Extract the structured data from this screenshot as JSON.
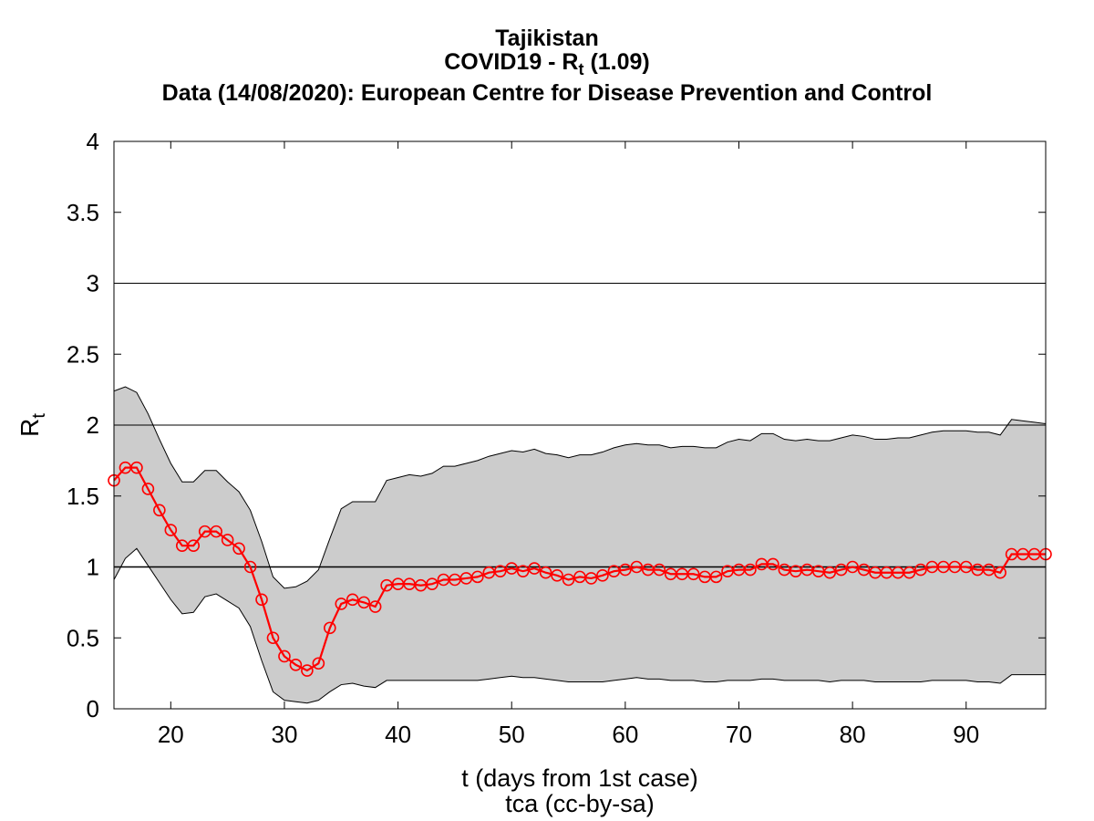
{
  "chart_data": {
    "type": "line",
    "title": "Tajikistan",
    "subtitle": {
      "prefix": "COVID19 - R",
      "subscript": "t",
      "suffix": " (1.09)"
    },
    "source": "Data (14/08/2020): European Centre for Disease Prevention and Control",
    "xlabel": "t (days from 1st case)",
    "credit": "tca (cc-by-sa)",
    "ylabel": {
      "main": "R",
      "subscript": "t"
    },
    "xlim": [
      15,
      97
    ],
    "ylim": [
      0,
      4
    ],
    "x_ticks": [
      20,
      30,
      40,
      50,
      60,
      70,
      80,
      90
    ],
    "x_tick_labels": [
      "20",
      "30",
      "40",
      "50",
      "60",
      "70",
      "80",
      "90"
    ],
    "y_ticks": [
      0,
      0.5,
      1,
      1.5,
      2,
      2.5,
      3,
      3.5,
      4
    ],
    "y_tick_labels": [
      "0",
      "0.5",
      "1",
      "1.5",
      "2",
      "2.5",
      "3",
      "3.5",
      "4"
    ],
    "reference_lines": [
      1,
      2,
      3
    ],
    "colors": {
      "series": "#ff0000",
      "band": "#cccccc",
      "axis": "#000000"
    },
    "series": [
      {
        "x": [
          15,
          16,
          17,
          18,
          19,
          20,
          21,
          22,
          23,
          24,
          25,
          26,
          27,
          28,
          29,
          30,
          31,
          32,
          33,
          34,
          35,
          36,
          37,
          38,
          39,
          40,
          41,
          42,
          43,
          44,
          45,
          46,
          47,
          48,
          49,
          50,
          51,
          52,
          53,
          54,
          55,
          56,
          57,
          58,
          59,
          60,
          61,
          62,
          63,
          64,
          65,
          66,
          67,
          68,
          69,
          70,
          71,
          72,
          73,
          74,
          75,
          76,
          77,
          78,
          79,
          80,
          81,
          82,
          83,
          84,
          85,
          86,
          87,
          88,
          89,
          90,
          91,
          92,
          93,
          94,
          95,
          96,
          97
        ],
        "y": [
          1.61,
          1.7,
          1.7,
          1.55,
          1.4,
          1.26,
          1.15,
          1.15,
          1.25,
          1.25,
          1.19,
          1.13,
          1.0,
          0.77,
          0.5,
          0.37,
          0.31,
          0.27,
          0.32,
          0.57,
          0.74,
          0.77,
          0.75,
          0.72,
          0.87,
          0.88,
          0.88,
          0.87,
          0.88,
          0.91,
          0.91,
          0.92,
          0.93,
          0.96,
          0.97,
          0.99,
          0.97,
          0.99,
          0.96,
          0.94,
          0.91,
          0.93,
          0.92,
          0.94,
          0.97,
          0.98,
          1.0,
          0.98,
          0.98,
          0.95,
          0.95,
          0.95,
          0.93,
          0.93,
          0.97,
          0.98,
          0.98,
          1.02,
          1.02,
          0.98,
          0.97,
          0.98,
          0.97,
          0.96,
          0.98,
          1.0,
          0.98,
          0.96,
          0.96,
          0.96,
          0.96,
          0.98,
          1.0,
          1.0,
          1.0,
          1.0,
          0.98,
          0.98,
          0.96,
          1.09,
          1.09,
          1.09,
          1.09
        ]
      }
    ],
    "confidence_band": {
      "upper": [
        2.24,
        2.27,
        2.23,
        2.08,
        1.9,
        1.73,
        1.6,
        1.6,
        1.68,
        1.68,
        1.6,
        1.53,
        1.4,
        1.18,
        0.93,
        0.85,
        0.86,
        0.9,
        0.98,
        1.2,
        1.41,
        1.46,
        1.46,
        1.46,
        1.61,
        1.63,
        1.65,
        1.64,
        1.66,
        1.71,
        1.71,
        1.73,
        1.75,
        1.78,
        1.8,
        1.82,
        1.81,
        1.83,
        1.8,
        1.79,
        1.77,
        1.79,
        1.79,
        1.81,
        1.84,
        1.86,
        1.87,
        1.86,
        1.86,
        1.84,
        1.85,
        1.85,
        1.84,
        1.84,
        1.88,
        1.9,
        1.89,
        1.94,
        1.94,
        1.9,
        1.89,
        1.9,
        1.89,
        1.89,
        1.91,
        1.93,
        1.92,
        1.9,
        1.9,
        1.91,
        1.91,
        1.93,
        1.95,
        1.96,
        1.96,
        1.96,
        1.95,
        1.95,
        1.93,
        2.04,
        2.03,
        2.02,
        2.01
      ],
      "lower": [
        0.91,
        1.06,
        1.13,
        1.01,
        0.89,
        0.77,
        0.67,
        0.68,
        0.79,
        0.81,
        0.76,
        0.71,
        0.58,
        0.34,
        0.12,
        0.06,
        0.05,
        0.04,
        0.06,
        0.12,
        0.17,
        0.18,
        0.16,
        0.15,
        0.2,
        0.2,
        0.2,
        0.2,
        0.2,
        0.2,
        0.2,
        0.2,
        0.2,
        0.21,
        0.22,
        0.23,
        0.22,
        0.22,
        0.21,
        0.2,
        0.19,
        0.19,
        0.19,
        0.19,
        0.2,
        0.21,
        0.22,
        0.21,
        0.21,
        0.2,
        0.2,
        0.2,
        0.19,
        0.19,
        0.2,
        0.2,
        0.2,
        0.21,
        0.21,
        0.2,
        0.2,
        0.2,
        0.2,
        0.19,
        0.2,
        0.2,
        0.2,
        0.19,
        0.19,
        0.19,
        0.19,
        0.19,
        0.2,
        0.2,
        0.2,
        0.2,
        0.19,
        0.19,
        0.18,
        0.24,
        0.24,
        0.24,
        0.24
      ]
    }
  }
}
